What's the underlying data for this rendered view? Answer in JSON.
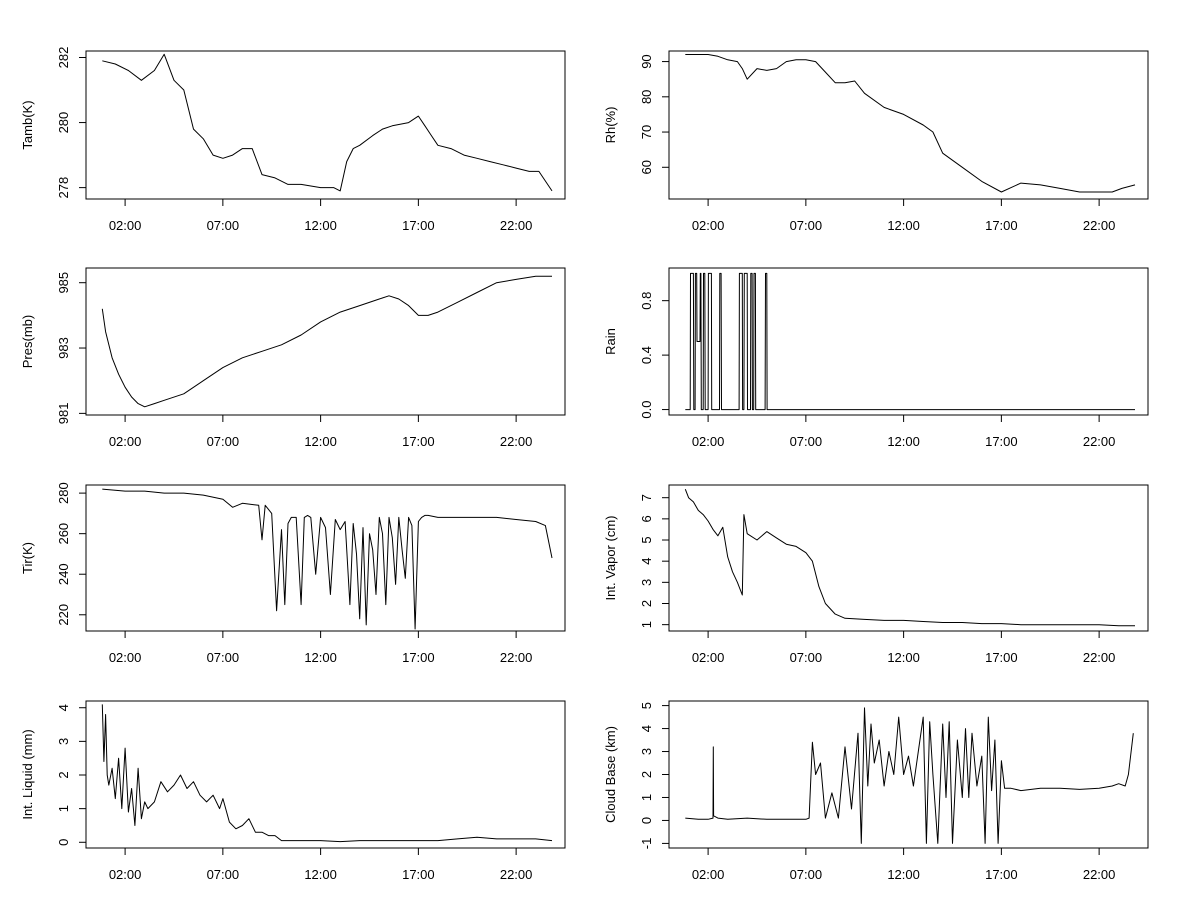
{
  "chart_data": [
    {
      "type": "line",
      "ylabel": "Tamb(K)",
      "x_ticks": [
        "02:00",
        "07:00",
        "12:00",
        "17:00",
        "22:00"
      ],
      "y_ticks": [
        "278",
        "280",
        "282"
      ],
      "y_tick_values": [
        278,
        280,
        282
      ],
      "ylim": [
        277.65,
        282.2
      ],
      "x": [
        "00:50",
        "01:30",
        "02:10",
        "02:50",
        "03:30",
        "04:00",
        "04:30",
        "05:00",
        "05:30",
        "06:00",
        "06:30",
        "07:00",
        "07:30",
        "08:00",
        "08:30",
        "09:00",
        "09:40",
        "10:20",
        "11:00",
        "12:00",
        "12:40",
        "13:00",
        "13:20",
        "13:40",
        "14:00",
        "14:40",
        "15:10",
        "15:40",
        "16:30",
        "17:00",
        "17:20",
        "17:40",
        "18:00",
        "18:40",
        "19:20",
        "20:00",
        "20:40",
        "21:20",
        "22:00",
        "22:40",
        "23:10",
        "23:50"
      ],
      "y": [
        281.9,
        281.8,
        281.6,
        281.3,
        281.6,
        282.1,
        281.3,
        281.0,
        279.8,
        279.5,
        279.0,
        278.9,
        279.0,
        279.2,
        279.2,
        278.4,
        278.3,
        278.1,
        278.1,
        278.0,
        278.0,
        277.9,
        278.8,
        279.2,
        279.3,
        279.6,
        279.8,
        279.9,
        280.0,
        280.2,
        279.9,
        279.6,
        279.3,
        279.2,
        279.0,
        278.9,
        278.8,
        278.7,
        278.6,
        278.5,
        278.5,
        277.9
      ]
    },
    {
      "type": "line",
      "ylabel": "Rh(%)",
      "x_ticks": [
        "02:00",
        "07:00",
        "12:00",
        "17:00",
        "22:00"
      ],
      "y_ticks": [
        "60",
        "70",
        "80",
        "90"
      ],
      "y_tick_values": [
        60,
        70,
        80,
        90
      ],
      "ylim": [
        51,
        93
      ],
      "x": [
        "00:50",
        "01:30",
        "02:00",
        "02:30",
        "03:00",
        "03:30",
        "03:45",
        "04:00",
        "04:30",
        "05:00",
        "05:30",
        "06:00",
        "06:30",
        "07:00",
        "07:30",
        "08:00",
        "08:30",
        "09:00",
        "09:30",
        "10:00",
        "11:00",
        "12:00",
        "13:00",
        "13:30",
        "14:00",
        "15:00",
        "16:00",
        "17:00",
        "18:00",
        "19:00",
        "20:00",
        "21:00",
        "22:00",
        "22:40",
        "23:10",
        "23:50"
      ],
      "y": [
        92,
        92,
        92,
        91.5,
        90.5,
        90,
        88,
        85,
        88,
        87.5,
        88,
        90,
        90.5,
        90.5,
        90,
        87,
        84,
        84,
        84.5,
        81,
        77,
        75,
        72,
        70,
        64,
        60,
        56,
        53,
        55.5,
        55,
        54,
        53,
        53,
        53,
        54,
        55
      ]
    },
    {
      "type": "line",
      "ylabel": "Pres(mb)",
      "x_ticks": [
        "02:00",
        "07:00",
        "12:00",
        "17:00",
        "22:00"
      ],
      "y_ticks": [
        "981",
        "983",
        "985"
      ],
      "y_tick_values": [
        981,
        983,
        985
      ],
      "ylim": [
        980.95,
        985.45
      ],
      "x": [
        "00:50",
        "01:00",
        "01:20",
        "01:40",
        "02:00",
        "02:20",
        "02:40",
        "03:00",
        "03:30",
        "04:00",
        "05:00",
        "06:00",
        "07:00",
        "08:00",
        "09:00",
        "10:00",
        "11:00",
        "12:00",
        "13:00",
        "14:00",
        "15:00",
        "15:30",
        "16:00",
        "16:30",
        "17:00",
        "17:30",
        "18:00",
        "19:00",
        "20:00",
        "21:00",
        "22:00",
        "23:00",
        "23:50"
      ],
      "y": [
        984.2,
        983.5,
        982.7,
        982.2,
        981.8,
        981.5,
        981.3,
        981.2,
        981.3,
        981.4,
        981.6,
        982.0,
        982.4,
        982.7,
        982.9,
        983.1,
        983.4,
        983.8,
        984.1,
        984.3,
        984.5,
        984.6,
        984.5,
        984.3,
        984.0,
        984.0,
        984.1,
        984.4,
        984.7,
        985.0,
        985.1,
        985.2,
        985.2
      ]
    },
    {
      "type": "line",
      "ylabel": "Rain",
      "x_ticks": [
        "02:00",
        "07:00",
        "12:00",
        "17:00",
        "22:00"
      ],
      "y_ticks": [
        "0.0",
        "0.4",
        "0.8"
      ],
      "y_tick_values": [
        0.0,
        0.4,
        0.8
      ],
      "ylim": [
        -0.04,
        1.04
      ],
      "x": [
        "00:50",
        "01:05",
        "01:06",
        "01:15",
        "01:16",
        "01:20",
        "01:21",
        "01:25",
        "01:26",
        "01:35",
        "01:36",
        "01:38",
        "01:39",
        "01:45",
        "01:46",
        "01:50",
        "01:51",
        "02:00",
        "02:01",
        "02:10",
        "02:11",
        "02:35",
        "02:36",
        "02:40",
        "02:41",
        "02:50",
        "02:51",
        "03:35",
        "03:36",
        "03:45",
        "03:46",
        "03:50",
        "03:51",
        "04:00",
        "04:01",
        "04:10",
        "04:11",
        "04:15",
        "04:16",
        "04:20",
        "04:21",
        "04:25",
        "04:26",
        "04:30",
        "04:31",
        "04:55",
        "04:56",
        "05:00",
        "05:01",
        "23:50"
      ],
      "y": [
        0,
        0,
        1,
        1,
        0,
        0,
        1,
        1,
        0.5,
        0.5,
        1,
        1,
        0,
        0,
        1,
        1,
        0,
        0,
        1,
        1,
        0,
        0,
        1,
        1,
        0,
        0,
        0,
        0,
        1,
        1,
        0,
        0,
        1,
        1,
        0,
        0,
        1,
        1,
        0,
        0,
        1,
        1,
        0,
        0,
        0,
        0,
        1,
        1,
        0,
        0
      ]
    },
    {
      "type": "line",
      "ylabel": "Tir(K)",
      "x_ticks": [
        "02:00",
        "07:00",
        "12:00",
        "17:00",
        "22:00"
      ],
      "y_ticks": [
        "220",
        "240",
        "260",
        "280"
      ],
      "y_tick_values": [
        220,
        240,
        260,
        280
      ],
      "ylim": [
        212,
        284
      ],
      "x": [
        "00:50",
        "02:00",
        "03:00",
        "04:00",
        "05:00",
        "06:00",
        "07:00",
        "07:30",
        "08:00",
        "08:50",
        "09:00",
        "09:10",
        "09:30",
        "09:45",
        "10:00",
        "10:10",
        "10:20",
        "10:30",
        "10:45",
        "11:00",
        "11:10",
        "11:20",
        "11:30",
        "11:45",
        "12:00",
        "12:15",
        "12:30",
        "12:45",
        "13:00",
        "13:15",
        "13:30",
        "13:40",
        "13:50",
        "14:00",
        "14:10",
        "14:20",
        "14:30",
        "14:40",
        "14:50",
        "15:00",
        "15:10",
        "15:20",
        "15:30",
        "15:40",
        "15:50",
        "16:00",
        "16:10",
        "16:20",
        "16:30",
        "16:40",
        "16:50",
        "17:00",
        "17:10",
        "17:20",
        "17:30",
        "18:00",
        "19:00",
        "20:00",
        "21:00",
        "22:00",
        "23:00",
        "23:30",
        "23:50"
      ],
      "y": [
        282,
        281,
        281,
        280,
        280,
        279,
        277,
        273,
        275,
        274,
        257,
        274,
        270,
        222,
        262,
        225,
        265,
        268,
        268,
        225,
        268,
        269,
        268,
        240,
        268,
        263,
        230,
        267,
        262,
        266,
        225,
        265,
        250,
        218,
        263,
        215,
        260,
        252,
        230,
        268,
        260,
        225,
        268,
        258,
        235,
        268,
        252,
        238,
        268,
        264,
        213,
        266,
        268,
        269,
        269,
        268,
        268,
        268,
        268,
        267,
        266,
        264,
        248
      ]
    },
    {
      "type": "line",
      "ylabel": "Int. Vapor (cm)",
      "x_ticks": [
        "02:00",
        "07:00",
        "12:00",
        "17:00",
        "22:00"
      ],
      "y_ticks": [
        "1",
        "2",
        "3",
        "4",
        "5",
        "6",
        "7"
      ],
      "y_tick_values": [
        1,
        2,
        3,
        4,
        5,
        6,
        7
      ],
      "ylim": [
        0.7,
        7.6
      ],
      "x": [
        "00:50",
        "01:00",
        "01:15",
        "01:30",
        "01:45",
        "02:00",
        "02:15",
        "02:30",
        "02:45",
        "03:00",
        "03:15",
        "03:30",
        "03:45",
        "03:50",
        "04:00",
        "04:30",
        "05:00",
        "05:30",
        "06:00",
        "06:30",
        "07:00",
        "07:20",
        "07:40",
        "08:00",
        "08:30",
        "09:00",
        "10:00",
        "11:00",
        "12:00",
        "13:00",
        "14:00",
        "15:00",
        "16:00",
        "17:00",
        "18:00",
        "19:00",
        "20:00",
        "21:00",
        "22:00",
        "23:00",
        "23:50"
      ],
      "y": [
        7.4,
        7.0,
        6.8,
        6.4,
        6.2,
        5.9,
        5.5,
        5.2,
        5.6,
        4.2,
        3.5,
        3.0,
        2.4,
        6.2,
        5.3,
        5.0,
        5.4,
        5.1,
        4.8,
        4.7,
        4.4,
        4.0,
        2.8,
        2.0,
        1.5,
        1.3,
        1.25,
        1.2,
        1.2,
        1.15,
        1.1,
        1.1,
        1.05,
        1.05,
        1.0,
        1.0,
        1.0,
        1.0,
        1.0,
        0.95,
        0.95
      ]
    },
    {
      "type": "line",
      "ylabel": "Int. Liquid (mm)",
      "x_ticks": [
        "02:00",
        "07:00",
        "12:00",
        "17:00",
        "22:00"
      ],
      "y_ticks": [
        "0",
        "1",
        "2",
        "3",
        "4"
      ],
      "y_tick_values": [
        0,
        1,
        2,
        3,
        4
      ],
      "ylim": [
        -0.17,
        4.2
      ],
      "x": [
        "00:50",
        "00:55",
        "01:00",
        "01:05",
        "01:10",
        "01:20",
        "01:30",
        "01:40",
        "01:50",
        "02:00",
        "02:10",
        "02:20",
        "02:30",
        "02:40",
        "02:50",
        "03:00",
        "03:10",
        "03:30",
        "03:50",
        "04:10",
        "04:30",
        "04:50",
        "05:10",
        "05:30",
        "05:50",
        "06:10",
        "06:30",
        "06:50",
        "07:00",
        "07:20",
        "07:40",
        "08:00",
        "08:20",
        "08:40",
        "09:00",
        "09:20",
        "09:40",
        "10:00",
        "11:00",
        "12:00",
        "13:00",
        "14:00",
        "15:00",
        "16:00",
        "17:00",
        "18:00",
        "19:00",
        "20:00",
        "21:00",
        "22:00",
        "23:00",
        "23:50"
      ],
      "y": [
        4.1,
        2.4,
        3.8,
        2.0,
        1.7,
        2.2,
        1.3,
        2.5,
        1.0,
        2.8,
        0.9,
        1.6,
        0.5,
        2.2,
        0.7,
        1.2,
        1.0,
        1.2,
        1.8,
        1.5,
        1.7,
        2.0,
        1.6,
        1.8,
        1.4,
        1.2,
        1.4,
        1.0,
        1.3,
        0.6,
        0.4,
        0.5,
        0.7,
        0.3,
        0.3,
        0.2,
        0.2,
        0.05,
        0.05,
        0.05,
        0.02,
        0.05,
        0.05,
        0.05,
        0.05,
        0.05,
        0.1,
        0.15,
        0.1,
        0.1,
        0.1,
        0.05
      ]
    },
    {
      "type": "line",
      "ylabel": "Cloud Base (km)",
      "x_ticks": [
        "02:00",
        "07:00",
        "12:00",
        "17:00",
        "22:00"
      ],
      "y_ticks": [
        "-1",
        "0",
        "1",
        "2",
        "3",
        "4",
        "5"
      ],
      "y_tick_values": [
        -1,
        0,
        1,
        2,
        3,
        4,
        5
      ],
      "ylim": [
        -1.2,
        5.2
      ],
      "x": [
        "00:50",
        "01:30",
        "02:00",
        "02:15",
        "02:16",
        "02:17",
        "02:30",
        "03:00",
        "04:00",
        "05:00",
        "06:00",
        "07:00",
        "07:10",
        "07:20",
        "07:30",
        "07:45",
        "08:00",
        "08:20",
        "08:40",
        "09:00",
        "09:20",
        "09:40",
        "09:50",
        "10:00",
        "10:10",
        "10:20",
        "10:30",
        "10:45",
        "11:00",
        "11:15",
        "11:30",
        "11:45",
        "12:00",
        "12:15",
        "12:30",
        "12:45",
        "13:00",
        "13:10",
        "13:20",
        "13:30",
        "13:45",
        "14:00",
        "14:10",
        "14:20",
        "14:30",
        "14:45",
        "15:00",
        "15:10",
        "15:20",
        "15:30",
        "15:45",
        "16:00",
        "16:10",
        "16:20",
        "16:30",
        "16:40",
        "16:50",
        "17:00",
        "17:10",
        "17:30",
        "18:00",
        "19:00",
        "20:00",
        "21:00",
        "22:00",
        "22:40",
        "23:00",
        "23:20",
        "23:30",
        "23:45"
      ],
      "y": [
        0.1,
        0.05,
        0.05,
        0.1,
        3.2,
        0.2,
        0.1,
        0.05,
        0.1,
        0.05,
        0.05,
        0.05,
        0.1,
        3.4,
        2.0,
        2.5,
        0.1,
        1.2,
        0.1,
        3.2,
        0.5,
        3.8,
        -1.0,
        4.9,
        1.5,
        4.2,
        2.5,
        3.5,
        1.5,
        3.0,
        2.0,
        4.5,
        2.0,
        2.8,
        1.5,
        3.0,
        4.5,
        -1.0,
        4.3,
        2.0,
        -1.0,
        4.2,
        1.0,
        4.3,
        -1.0,
        3.5,
        1.0,
        4.0,
        1.0,
        3.8,
        1.5,
        2.8,
        -1.0,
        4.5,
        1.3,
        3.5,
        -1.0,
        2.6,
        1.4,
        1.4,
        1.3,
        1.4,
        1.4,
        1.35,
        1.4,
        1.5,
        1.6,
        1.5,
        2.0,
        3.8
      ]
    }
  ]
}
